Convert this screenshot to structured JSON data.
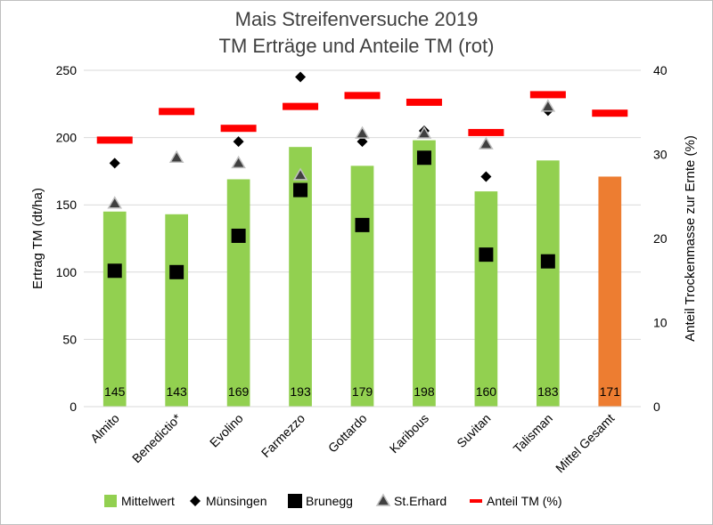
{
  "chart_data": {
    "type": "bar",
    "title": [
      "Mais Streifenversuche 2019",
      "TM Erträge und Anteile TM (rot)"
    ],
    "ylabel": "Ertrag TM (dt/ha)",
    "y2label": "Anteil Trockenmasse zur Ernte (%)",
    "ylim": [
      0,
      250
    ],
    "y2lim": [
      0,
      40
    ],
    "yticks": [
      "0",
      "50",
      "100",
      "150",
      "200",
      "250"
    ],
    "y2ticks": [
      "0",
      "10",
      "20",
      "30",
      "40"
    ],
    "grid": true,
    "legend_position": "bottom",
    "categories": [
      "Almito",
      "Benedictio*",
      "Evolino",
      "Farmezzo",
      "Gottardo",
      "Karibous",
      "Suvitan",
      "Talisman",
      "Mittel Gesamt"
    ],
    "series": [
      {
        "name": "Mittelwert",
        "kind": "bar",
        "axis": "left",
        "values": [
          145,
          143,
          169,
          193,
          179,
          198,
          160,
          183,
          171
        ],
        "labels": [
          "145",
          "143",
          "169",
          "193",
          "179",
          "198",
          "160",
          "183",
          "171"
        ],
        "color": "#92d050",
        "highlight_color": "#ed7d31"
      },
      {
        "name": "Münsingen",
        "kind": "diamond",
        "axis": "left",
        "values": [
          181,
          null,
          197,
          245,
          197,
          205,
          171,
          220,
          null
        ],
        "color": "#000000"
      },
      {
        "name": "Brunegg",
        "kind": "square",
        "axis": "left",
        "values": [
          101,
          100,
          127,
          161,
          135,
          185,
          113,
          108,
          null
        ],
        "color": "#000000"
      },
      {
        "name": "St.Erhard",
        "kind": "triangle",
        "axis": "left",
        "values": [
          151,
          185,
          181,
          172,
          203,
          203,
          195,
          223,
          null
        ],
        "color": "#404040"
      },
      {
        "name": "Anteil TM (%)",
        "kind": "dash",
        "axis": "right",
        "values": [
          31.7,
          35.1,
          33.1,
          35.7,
          37.0,
          36.2,
          32.6,
          37.1,
          34.9
        ],
        "color": "#ff0000"
      }
    ]
  }
}
